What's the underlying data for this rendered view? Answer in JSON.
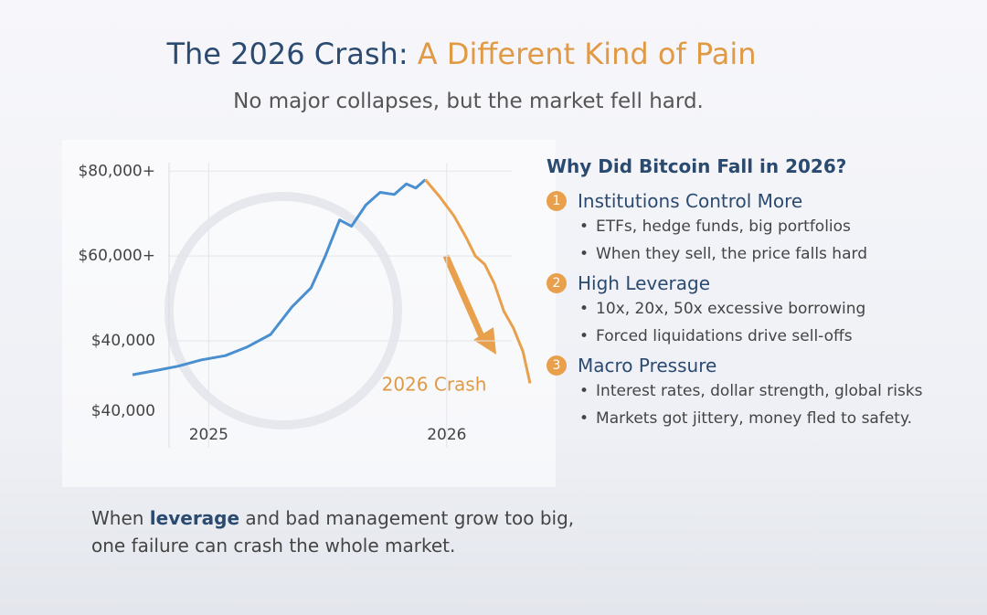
{
  "header": {
    "title": "The 2026 Crash:",
    "title_highlight": "A Different Kind of Pain",
    "subtitle": "No major collapses, but the market fell hard."
  },
  "chart_data": {
    "type": "line",
    "series": [
      {
        "color": "#4a8fcf",
        "x": [
          2024.68,
          2024.78,
          2024.87,
          2024.97,
          2025.07,
          2025.16,
          2025.26,
          2025.35,
          2025.43,
          2025.49,
          2025.55,
          2025.6,
          2025.66,
          2025.72,
          2025.78,
          2025.83,
          2025.87,
          2025.91
        ],
        "values": [
          32000,
          33000,
          34000,
          35500,
          36500,
          38500,
          41500,
          48000,
          52500,
          60000,
          68500,
          67000,
          72000,
          75000,
          74500,
          77000,
          76000,
          78000
        ]
      },
      {
        "color": "#e8a04c",
        "x": [
          2025.91,
          2025.97,
          2026.03,
          2026.08,
          2026.12,
          2026.16,
          2026.2,
          2026.24,
          2026.28,
          2026.32,
          2026.35
        ],
        "values": [
          78000,
          74000,
          69500,
          64500,
          60000,
          58000,
          53500,
          47000,
          43000,
          37500,
          30000
        ]
      }
    ],
    "xlim": [
      2024.68,
      2026.35
    ],
    "xticks": [
      2025,
      2026
    ],
    "ylim": [
      23400,
      82000
    ],
    "yticks": [
      {
        "value": 80000,
        "label": "$80,000+"
      },
      {
        "value": 60000,
        "label": "$60,000+"
      },
      {
        "value": 40000,
        "label": "$40,000"
      }
    ],
    "baseline_label": "$40,000",
    "annotation": "2026 Crash",
    "grid": true
  },
  "sidebar": {
    "heading": "Why Did Bitcoin Fall in 2026?",
    "sections": [
      {
        "number": "1",
        "title": "Institutions Control More",
        "bullets": [
          "ETFs, hedge funds, big portfolios",
          "When they sell, the price falls hard"
        ]
      },
      {
        "number": "2",
        "title": "High Leverage",
        "bullets": [
          "10x, 20x, 50x excessive borrowing",
          "Forced liquidations drive sell-offs"
        ]
      },
      {
        "number": "3",
        "title": "Macro Pressure",
        "bullets": [
          "Interest rates, dollar strength, global risks",
          "Markets got jittery, money fled to safety."
        ]
      }
    ]
  },
  "footer": {
    "line1_start": "When",
    "line1_bold": "leverage",
    "line1_end": "and bad management grow too big,",
    "line2": "one failure can crash the whole market."
  }
}
